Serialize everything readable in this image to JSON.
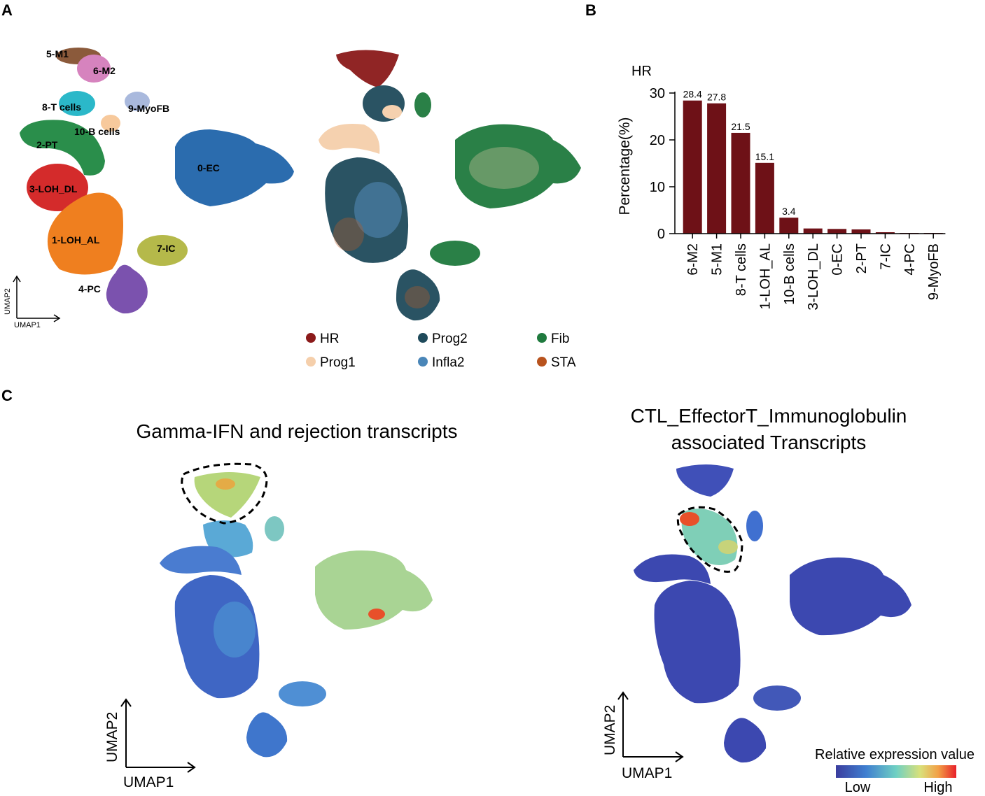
{
  "panels": {
    "a": "A",
    "b": "B",
    "c": "C"
  },
  "colors": {
    "bar": "#6e1117",
    "cluster_EC": "#2b6cae",
    "cluster_LOH_AL": "#ef7f1f",
    "cluster_PT": "#2a8e4b",
    "cluster_LOH_DL": "#d42b2b",
    "cluster_PC": "#7b52ae",
    "cluster_M1": "#8b5a3b",
    "cluster_M2": "#d683be",
    "cluster_IC": "#b5b94a",
    "cluster_T": "#2bb8c9",
    "cluster_MyoFB": "#a9b9dd",
    "cluster_B": "#f7c99c",
    "HR": "#8b1a1a",
    "Prog1": "#f5cfab",
    "Prog2": "#1f4a5b",
    "Infla2": "#4a86b8",
    "Fib": "#1f7a3e",
    "STA": "#b8531e"
  },
  "panel_a": {
    "axes": {
      "x": "UMAP1",
      "y": "UMAP2"
    },
    "cluster_labels": [
      "5-M1",
      "6-M2",
      "8-T cells",
      "9-MyoFB",
      "10-B cells",
      "2-PT",
      "0-EC",
      "3-LOH_DL",
      "1-LOH_AL",
      "7-IC",
      "4-PC"
    ],
    "legend": [
      "HR",
      "Prog2",
      "Fib",
      "Prog1",
      "Infla2",
      "STA"
    ]
  },
  "chart_data": {
    "type": "bar",
    "title": "HR",
    "ylabel": "Percentage(%)",
    "xlabel": "",
    "ylim": [
      0,
      30
    ],
    "yticks": [
      0,
      10,
      20,
      30
    ],
    "categories": [
      "6-M2",
      "5-M1",
      "8-T cells",
      "1-LOH_AL",
      "10-B cells",
      "3-LOH_DL",
      "0-EC",
      "2-PT",
      "7-IC",
      "4-PC",
      "9-MyoFB"
    ],
    "values": [
      28.4,
      27.8,
      21.5,
      15.1,
      3.4,
      1.1,
      1.0,
      0.9,
      0.3,
      0.05,
      0.02
    ],
    "value_labels": [
      "28.4",
      "27.8",
      "21.5",
      "15.1",
      "3.4",
      "",
      "",
      "",
      "",
      "",
      ""
    ]
  },
  "panel_c": {
    "left_title": "Gamma-IFN and rejection transcripts",
    "right_title_line1": "CTL_EffectorT_Immunoglobulin",
    "right_title_line2": "associated Transcripts",
    "axes": {
      "x": "UMAP1",
      "y": "UMAP2"
    },
    "colorbar": {
      "title": "Relative expression value",
      "low": "Low",
      "high": "High"
    }
  }
}
